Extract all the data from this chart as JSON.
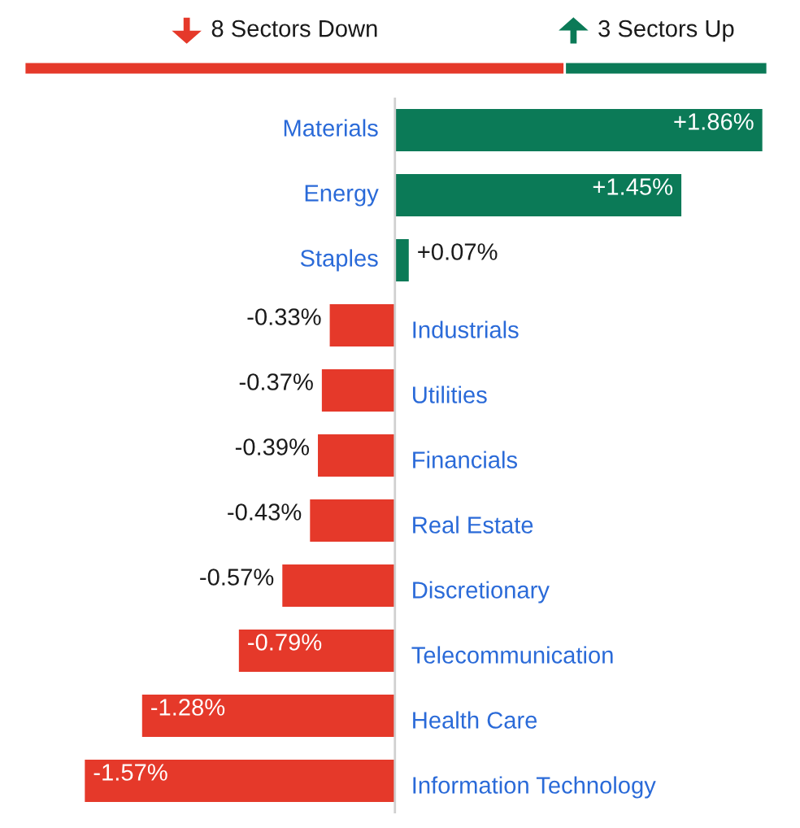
{
  "chart_data": [
    {
      "type": "other",
      "values": [
        8,
        3
      ],
      "colors": [
        "#e5392a",
        "#0b7a57"
      ],
      "value_labels": [
        "8 Sectors Down",
        "3 Sectors Up"
      ]
    },
    {
      "type": "bar",
      "orientation": "horizontal",
      "tick_labels": "y",
      "categories": [
        "Materials",
        "Energy",
        "Staples",
        "Industrials",
        "Utilities",
        "Financials",
        "Real Estate",
        "Discretionary",
        "Telecommunication",
        "Health Care",
        "Information Technology"
      ],
      "values": [
        1.86,
        1.45,
        0.07,
        -0.33,
        -0.37,
        -0.39,
        -0.43,
        -0.57,
        -0.79,
        -1.28,
        -1.57
      ],
      "colors": [
        "#0b7a57",
        "#0b7a57",
        "#0b7a57",
        "#e5392a",
        "#e5392a",
        "#e5392a",
        "#e5392a",
        "#e5392a",
        "#e5392a",
        "#e5392a",
        "#e5392a"
      ],
      "value_labels": [
        "+1.86%",
        "+1.45%",
        "+0.07%",
        "-0.33%",
        "-0.37%",
        "-0.39%",
        "-0.43%",
        "-0.57%",
        "-0.79%",
        "-1.28%",
        "-1.57%"
      ]
    }
  ]
}
